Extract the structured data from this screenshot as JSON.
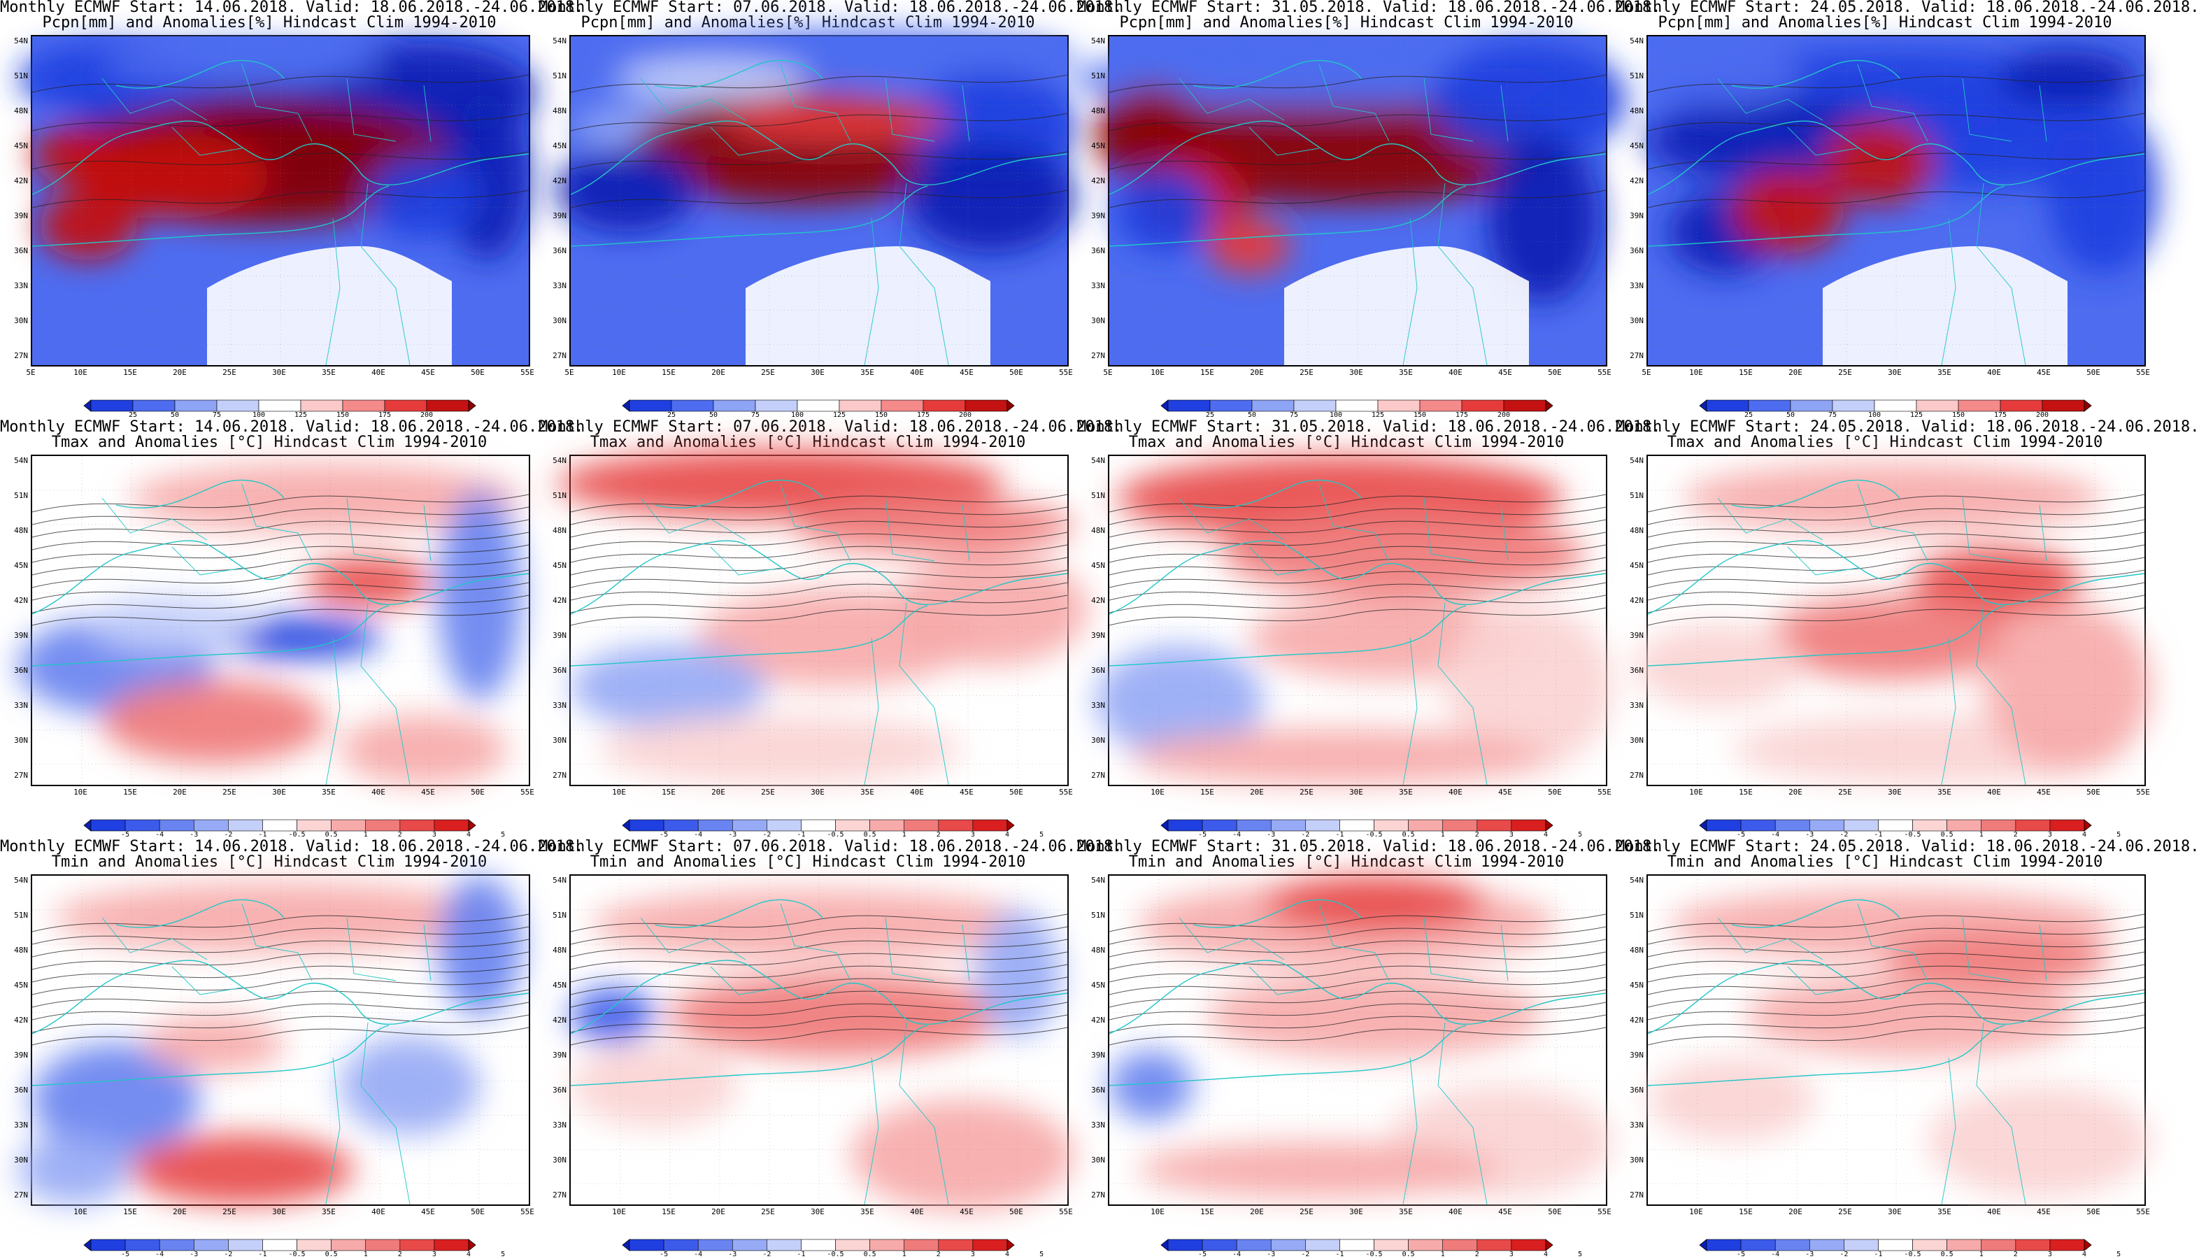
{
  "panels": [
    {
      "line1": "Monthly ECMWF Start: 14.06.2018. Valid: 18.06.2018.-24.06.2018.",
      "line2": "Pcpn[mm] and Anomalies[%] Hindcast Clim 1994-2010",
      "var": "pcpn",
      "variant": 0
    },
    {
      "line1": "Monthly ECMWF Start: 07.06.2018. Valid: 18.06.2018.-24.06.2018.",
      "line2": "Pcpn[mm] and Anomalies[%] Hindcast Clim 1994-2010",
      "var": "pcpn",
      "variant": 1
    },
    {
      "line1": "Monthly ECMWF Start: 31.05.2018. Valid: 18.06.2018.-24.06.2018.",
      "line2": "Pcpn[mm] and Anomalies[%] Hindcast Clim 1994-2010",
      "var": "pcpn",
      "variant": 2
    },
    {
      "line1": "Monthly ECMWF Start: 24.05.2018. Valid: 18.06.2018.-24.06.2018.",
      "line2": "Pcpn[mm] and Anomalies[%] Hindcast Clim 1994-2010",
      "var": "pcpn",
      "variant": 3
    },
    {
      "line1": "Monthly ECMWF Start: 14.06.2018. Valid: 18.06.2018.-24.06.2018.",
      "line2": "Tmax and Anomalies [°C] Hindcast Clim 1994-2010",
      "var": "tmax",
      "variant": 0
    },
    {
      "line1": "Monthly ECMWF Start: 07.06.2018. Valid: 18.06.2018.-24.06.2018.",
      "line2": "Tmax and Anomalies [°C] Hindcast Clim 1994-2010",
      "var": "tmax",
      "variant": 1
    },
    {
      "line1": "Monthly ECMWF Start: 31.05.2018. Valid: 18.06.2018.-24.06.2018.",
      "line2": "Tmax and Anomalies [°C] Hindcast Clim 1994-2010",
      "var": "tmax",
      "variant": 2
    },
    {
      "line1": "Monthly ECMWF Start: 24.05.2018. Valid: 18.06.2018.-24.06.2018.",
      "line2": "Tmax and Anomalies [°C] Hindcast Clim 1994-2010",
      "var": "tmax",
      "variant": 3
    },
    {
      "line1": "Monthly ECMWF Start: 14.06.2018. Valid: 18.06.2018.-24.06.2018.",
      "line2": "Tmin and Anomalies [°C] Hindcast Clim 1994-2010",
      "var": "tmin",
      "variant": 0
    },
    {
      "line1": "Monthly ECMWF Start: 07.06.2018. Valid: 18.06.2018.-24.06.2018.",
      "line2": "Tmin and Anomalies [°C] Hindcast Clim 1994-2010",
      "var": "tmin",
      "variant": 1
    },
    {
      "line1": "Monthly ECMWF Start: 31.05.2018. Valid: 18.06.2018.-24.06.2018.",
      "line2": "Tmin and Anomalies [°C] Hindcast Clim 1994-2010",
      "var": "tmin",
      "variant": 2
    },
    {
      "line1": "Monthly ECMWF Start: 24.05.2018. Valid: 18.06.2018.-24.06.2018.",
      "line2": "Tmin and Anomalies [°C] Hindcast Clim 1994-2010",
      "var": "tmin",
      "variant": 3
    }
  ],
  "lat_ticks": [
    "54N",
    "51N",
    "48N",
    "45N",
    "42N",
    "39N",
    "36N",
    "33N",
    "30N",
    "27N"
  ],
  "lon_ticks_pcpn": [
    "5E",
    "10E",
    "15E",
    "20E",
    "25E",
    "30E",
    "35E",
    "40E",
    "45E",
    "50E",
    "55E"
  ],
  "lon_ticks_temp": [
    "10E",
    "15E",
    "20E",
    "25E",
    "30E",
    "35E",
    "40E",
    "45E",
    "50E",
    "55E"
  ],
  "colorbars": {
    "pcpn": {
      "labels": [
        "25",
        "50",
        "75",
        "100",
        "125",
        "150",
        "175",
        "200"
      ],
      "colors": [
        "#0a1fb4",
        "#1f3fe0",
        "#4d6cf0",
        "#8ea4f5",
        "#c4cffa",
        "#ffffff",
        "#fbc9c9",
        "#f48a8a",
        "#e63b3b",
        "#c41111",
        "#8c0000"
      ]
    },
    "temp": {
      "labels": [
        "-5",
        "-4",
        "-3",
        "-2",
        "-1",
        "-0.5",
        "0.5",
        "1",
        "2",
        "3",
        "4",
        "5"
      ],
      "colors": [
        "#0a1fb4",
        "#1f3fe0",
        "#3d5bea",
        "#6983f0",
        "#97aaf5",
        "#c4cffa",
        "#ffffff",
        "#fbd4d4",
        "#f7aaaa",
        "#f07b7b",
        "#e84a4a",
        "#d91f1f",
        "#a80000"
      ]
    }
  }
}
